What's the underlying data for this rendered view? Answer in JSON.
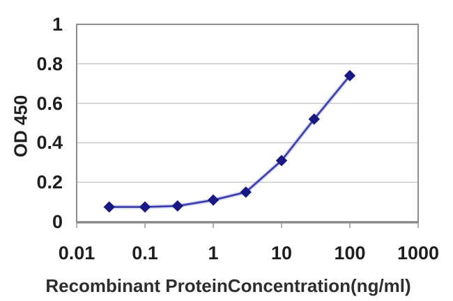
{
  "chart_data": {
    "type": "line",
    "title": "",
    "xlabel": "Recombinant ProteinConcentration(ng/ml)",
    "ylabel": "OD 450",
    "x_scale": "log",
    "xlim": [
      0.01,
      1000
    ],
    "ylim": [
      0,
      1
    ],
    "x_tick_values": [
      0.01,
      0.1,
      1,
      10,
      100,
      1000
    ],
    "x_tick_labels": [
      "0.01",
      "0.1",
      "1",
      "10",
      "100",
      "1000"
    ],
    "y_tick_values": [
      1,
      0.8,
      0.6,
      0.4,
      0.2,
      0
    ],
    "y_tick_labels": [
      "1",
      "0.8",
      "0.6",
      "0.4",
      "0.2",
      "0"
    ],
    "grid": "horizontal",
    "legend": "none",
    "marker": "diamond",
    "series": [
      {
        "name": "OD 450",
        "x": [
          0.03,
          0.1,
          0.3,
          1,
          3,
          10,
          30,
          100
        ],
        "y": [
          0.075,
          0.075,
          0.08,
          0.11,
          0.15,
          0.31,
          0.52,
          0.74
        ]
      }
    ],
    "colors": {
      "line": "#3b3baa",
      "line_halo": "#aeb6e2",
      "marker": "#191984",
      "grid": "#c9c9c9",
      "axis": "#8c8c8c",
      "tick": "#b0b0b0",
      "text": "#1f1f1f",
      "background": "#ffffff"
    }
  }
}
